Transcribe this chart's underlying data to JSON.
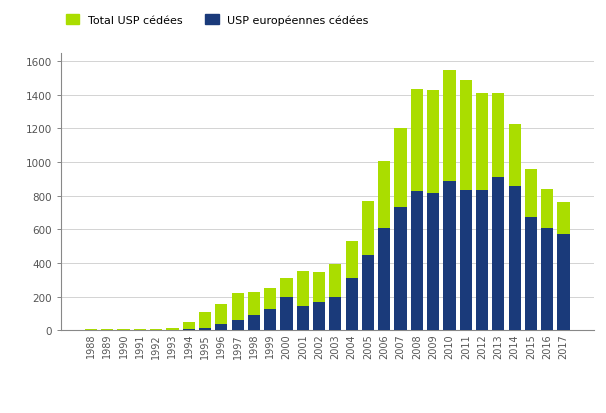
{
  "years": [
    1988,
    1989,
    1990,
    1991,
    1992,
    1993,
    1994,
    1995,
    1996,
    1997,
    1998,
    1999,
    2000,
    2001,
    2002,
    2003,
    2004,
    2005,
    2006,
    2007,
    2008,
    2009,
    2010,
    2011,
    2012,
    2013,
    2014,
    2015,
    2016,
    2017
  ],
  "total_usp": [
    10,
    5,
    5,
    10,
    10,
    15,
    50,
    110,
    155,
    220,
    230,
    250,
    310,
    355,
    345,
    395,
    530,
    770,
    1005,
    1205,
    1435,
    1430,
    1550,
    1490,
    1410,
    1410,
    1225,
    960,
    840,
    760
  ],
  "euro_usp": [
    2,
    2,
    2,
    2,
    2,
    2,
    5,
    15,
    35,
    60,
    90,
    125,
    195,
    145,
    170,
    195,
    310,
    450,
    610,
    730,
    830,
    815,
    890,
    835,
    835,
    910,
    860,
    675,
    605,
    575
  ],
  "color_total": "#aadd00",
  "color_euro": "#1a3a7a",
  "legend_total": "Total USP cédées",
  "legend_euro": "USP européennes cédées",
  "ylim": [
    0,
    1650
  ],
  "yticks": [
    0,
    200,
    400,
    600,
    800,
    1000,
    1200,
    1400,
    1600
  ],
  "background_color": "#ffffff",
  "bar_width": 0.75,
  "spine_color": "#888888",
  "axis_label_color": "#555555",
  "grid_color": "#cccccc"
}
